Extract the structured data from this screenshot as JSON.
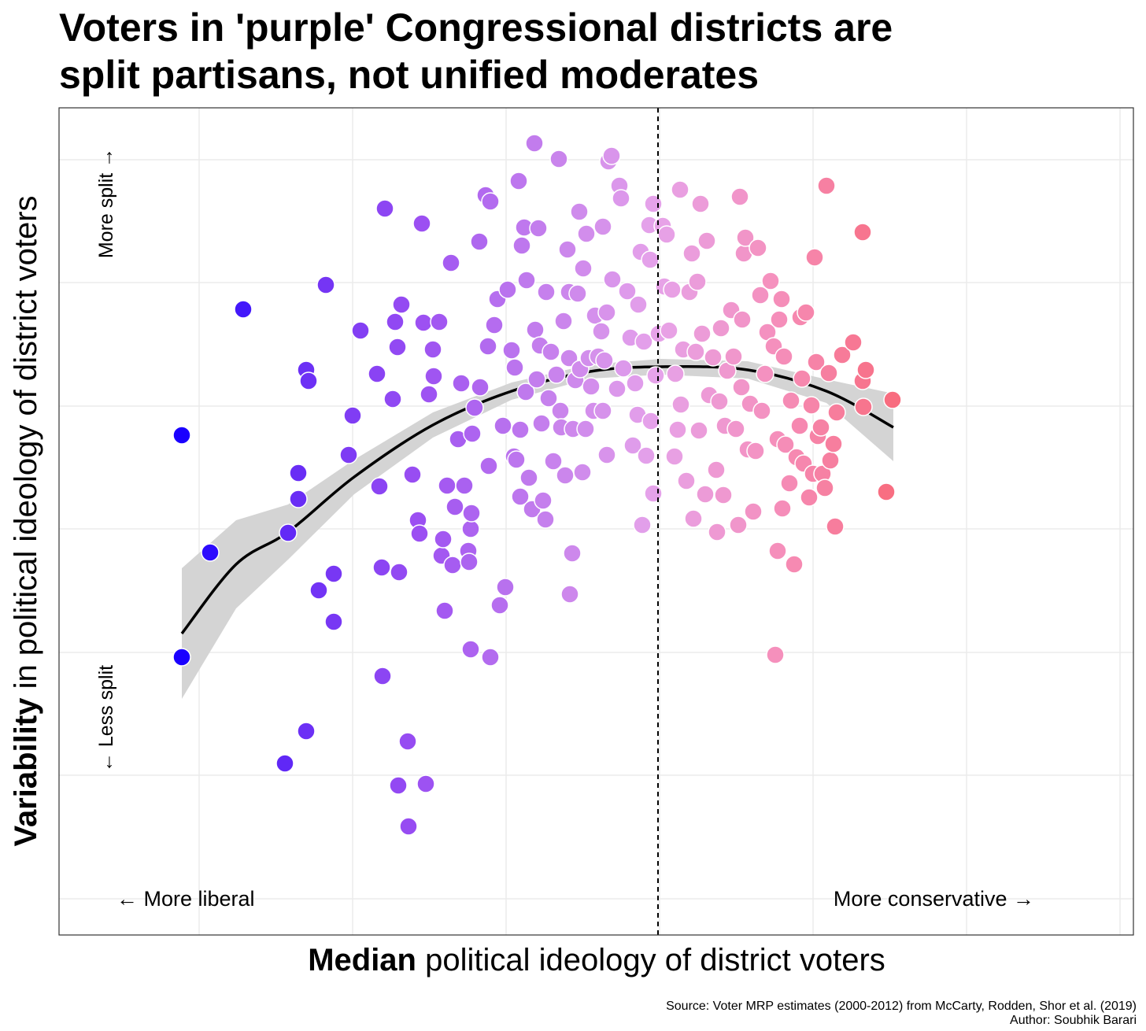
{
  "chart_data": {
    "type": "scatter",
    "title": [
      "Voters in 'purple' Congressional districts are",
      "split partisans, not unified moderates"
    ],
    "x_label": {
      "bold": "Median",
      "rest": " political ideology of district voters"
    },
    "y_label": {
      "bold": "Variability",
      "rest": " in political ideology of district voters"
    },
    "annotations": {
      "more_split": "More split →",
      "less_split": "← Less split",
      "more_liberal": "← More liberal",
      "more_conservative": "More conservative →"
    },
    "source": [
      "Source: Voter MRP estimates (2000-2012) from McCarty, Rodden, Shor et al. (2019)",
      "Author: Soubhik Barari"
    ],
    "xlim": [
      0,
      1365
    ],
    "ylim": [
      0,
      1051
    ],
    "xticks": [
      178,
      373,
      568,
      763,
      958,
      1153,
      1348
    ],
    "yticks": [
      46,
      203,
      359,
      516,
      672,
      829,
      985
    ],
    "grid": true,
    "vline": 761,
    "color_stops": [
      "#1a00ff",
      "#6a2ef5",
      "#9b4ff2",
      "#c37ded",
      "#e6a3ea",
      "#f590bd",
      "#f86c7f"
    ],
    "fit": {
      "x": [
        156,
        225,
        291,
        375,
        475,
        575,
        675,
        765,
        875,
        975,
        1060
      ],
      "y": [
        383,
        471,
        512,
        582,
        648,
        691,
        716,
        722,
        718,
        691,
        645
      ],
      "lower": [
        300,
        415,
        477,
        560,
        632,
        680,
        707,
        712,
        707,
        676,
        602
      ],
      "upper": [
        466,
        527,
        547,
        604,
        664,
        702,
        725,
        732,
        729,
        706,
        688
      ],
      "color": "#000000",
      "band_color": "#d4d4d4"
    },
    "x": [
      156,
      156,
      192,
      234,
      287,
      291,
      304,
      304,
      314,
      317,
      314,
      330,
      339,
      349,
      349,
      368,
      373,
      383,
      404,
      407,
      410,
      411,
      414,
      424,
      427,
      430,
      432,
      435,
      443,
      431,
      444,
      449,
      456,
      458,
      461,
      463,
      466,
      470,
      475,
      476,
      483,
      486,
      488,
      490,
      493,
      498,
      500,
      503,
      507,
      511,
      515,
      520,
      521,
      523,
      523,
      524,
      525,
      528,
      534,
      535,
      542,
      548,
      545,
      546,
      548,
      553,
      557,
      560,
      564,
      567,
      570,
      575,
      578,
      579,
      581,
      584,
      586,
      586,
      588,
      591,
      593,
      594,
      597,
      601,
      604,
      605,
      607,
      609,
      611,
      613,
      615,
      618,
      619,
      622,
      625,
      628,
      632,
      635,
      637,
      638,
      641,
      643,
      646,
      648,
      648,
      649,
      652,
      653,
      656,
      659,
      661,
      662,
      665,
      666,
      669,
      670,
      673,
      676,
      679,
      681,
      685,
      689,
      691,
      691,
      693,
      696,
      696,
      698,
      702,
      703,
      709,
      712,
      714,
      717,
      722,
      726,
      729,
      732,
      735,
      736,
      739,
      741,
      743,
      746,
      750,
      751,
      752,
      755,
      755,
      758,
      762,
      767,
      769,
      772,
      775,
      779,
      782,
      783,
      786,
      789,
      790,
      793,
      797,
      801,
      804,
      806,
      809,
      811,
      813,
      815,
      817,
      821,
      823,
      826,
      831,
      835,
      836,
      839,
      841,
      844,
      846,
      849,
      854,
      857,
      860,
      863,
      865,
      867,
      868,
      870,
      872,
      875,
      878,
      882,
      885,
      888,
      891,
      893,
      897,
      900,
      904,
      908,
      910,
      913,
      913,
      915,
      918,
      919,
      921,
      923,
      928,
      930,
      934,
      937,
      941,
      942,
      944,
      946,
      949,
      953,
      956,
      958,
      960,
      962,
      964,
      968,
      970,
      973,
      975,
      978,
      980,
      984,
      986,
      988,
      995,
      1009,
      1021,
      1021,
      1022,
      1025,
      1051,
      1059
    ],
    "y": [
      635,
      353,
      486,
      795,
      218,
      511,
      554,
      587,
      718,
      704,
      259,
      438,
      826,
      459,
      398,
      610,
      660,
      768,
      713,
      570,
      467,
      329,
      923,
      681,
      779,
      747,
      461,
      801,
      246,
      190,
      138,
      585,
      527,
      510,
      904,
      778,
      192,
      687,
      744,
      710,
      779,
      482,
      503,
      412,
      571,
      854,
      470,
      544,
      630,
      701,
      571,
      488,
      474,
      363,
      516,
      536,
      637,
      670,
      881,
      696,
      940,
      932,
      748,
      596,
      353,
      775,
      808,
      419,
      647,
      442,
      820,
      743,
      608,
      721,
      604,
      958,
      557,
      642,
      876,
      899,
      690,
      832,
      581,
      541,
      1006,
      769,
      706,
      898,
      749,
      650,
      552,
      528,
      817,
      682,
      741,
      602,
      712,
      986,
      666,
      645,
      780,
      584,
      871,
      733,
      817,
      433,
      485,
      643,
      705,
      815,
      919,
      719,
      588,
      847,
      643,
      891,
      733,
      697,
      666,
      787,
      735,
      767,
      900,
      666,
      730,
      791,
      610,
      983,
      990,
      833,
      694,
      952,
      936,
      720,
      818,
      759,
      622,
      701,
      661,
      801,
      868,
      521,
      754,
      609,
      902,
      858,
      653,
      929,
      561,
      711,
      764,
      901,
      824,
      890,
      768,
      820,
      608,
      713,
      642,
      947,
      674,
      744,
      577,
      817,
      866,
      529,
      741,
      830,
      641,
      929,
      764,
      560,
      882,
      686,
      734,
      591,
      512,
      678,
      771,
      559,
      647,
      717,
      794,
      735,
      643,
      521,
      938,
      696,
      782,
      866,
      886,
      617,
      675,
      538,
      615,
      873,
      813,
      666,
      713,
      766,
      831,
      748,
      356,
      488,
      630,
      782,
      808,
      542,
      735,
      623,
      574,
      679,
      471,
      607,
      647,
      785,
      707,
      599,
      791,
      556,
      673,
      586,
      861,
      728,
      634,
      645,
      586,
      568,
      952,
      714,
      603,
      624,
      519,
      664,
      737,
      753,
      704,
      893,
      671,
      718,
      563,
      680
    ]
  }
}
